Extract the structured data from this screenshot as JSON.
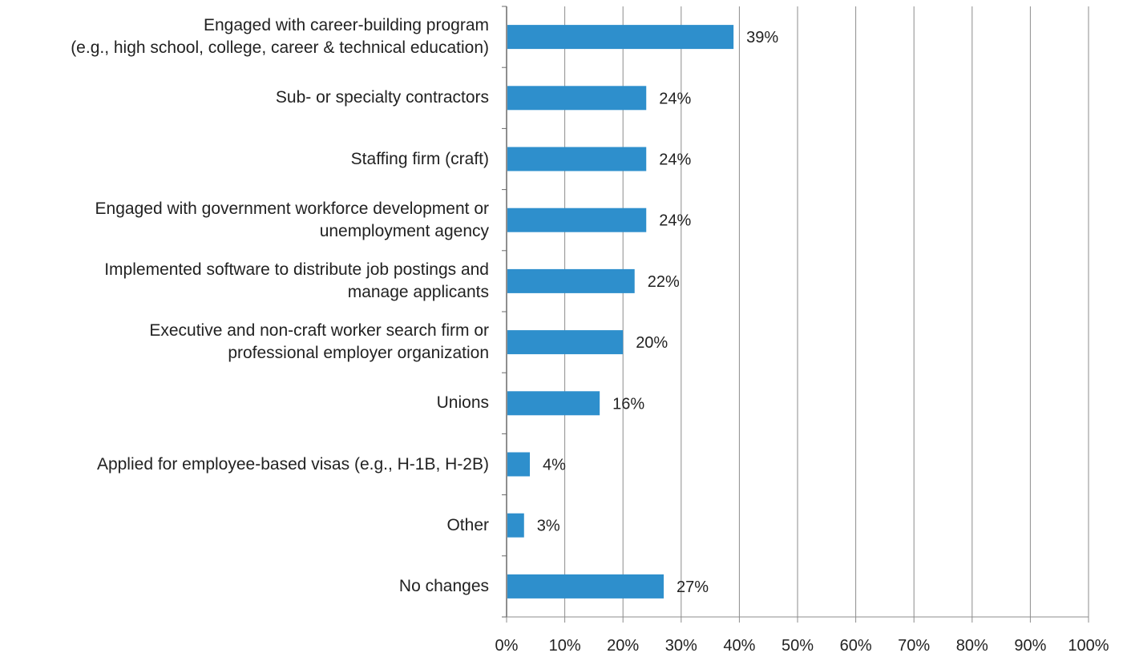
{
  "chart_data": {
    "type": "bar",
    "orientation": "horizontal",
    "categories": [
      "Engaged with career-building program\n(e.g., high school, college, career & technical education)",
      "Sub- or specialty contractors",
      "Staffing firm (craft)",
      "Engaged with government workforce development or\nunemployment agency",
      "Implemented software to distribute job postings and\nmanage applicants",
      "Executive and non-craft worker search firm or\nprofessional employer organization",
      "Unions",
      "Applied for employee-based visas (e.g., H-1B, H-2B)",
      "Other",
      "No changes"
    ],
    "values": [
      39,
      24,
      24,
      24,
      22,
      20,
      16,
      4,
      3,
      27
    ],
    "value_labels": [
      "39%",
      "24%",
      "24%",
      "24%",
      "22%",
      "20%",
      "16%",
      "4%",
      "3%",
      "27%"
    ],
    "xlim": [
      0,
      100
    ],
    "x_ticks": [
      "0%",
      "10%",
      "20%",
      "30%",
      "40%",
      "50%",
      "60%",
      "70%",
      "80%",
      "90%",
      "100%"
    ],
    "grid": "vertical",
    "bar_color": "#2e8fcc",
    "title": "",
    "xlabel": "",
    "ylabel": ""
  }
}
